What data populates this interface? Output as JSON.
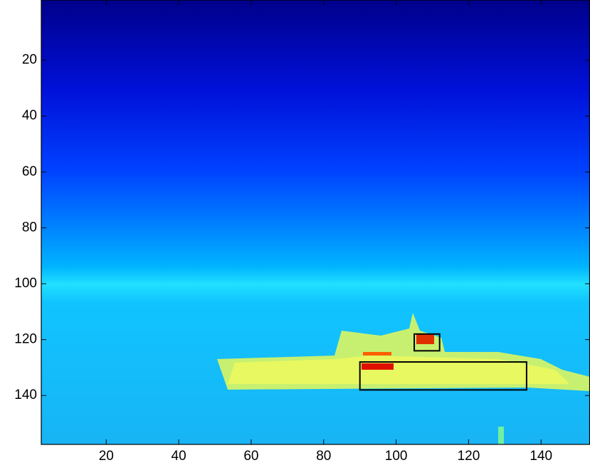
{
  "chart_data": {
    "type": "image",
    "colormap": "jet",
    "xlim": [
      0.5,
      153.5
    ],
    "ylim": [
      0.5,
      157.5
    ],
    "y_reversed": true,
    "xticks": [
      20,
      40,
      60,
      80,
      100,
      120,
      140
    ],
    "yticks": [
      20,
      40,
      60,
      80,
      100,
      120,
      140
    ],
    "boxes": [
      {
        "x": [
          105,
          112
        ],
        "y": [
          118,
          124
        ],
        "color": "#000000"
      },
      {
        "x": [
          90,
          136
        ],
        "y": [
          128,
          138
        ],
        "color": "#000000"
      }
    ]
  }
}
